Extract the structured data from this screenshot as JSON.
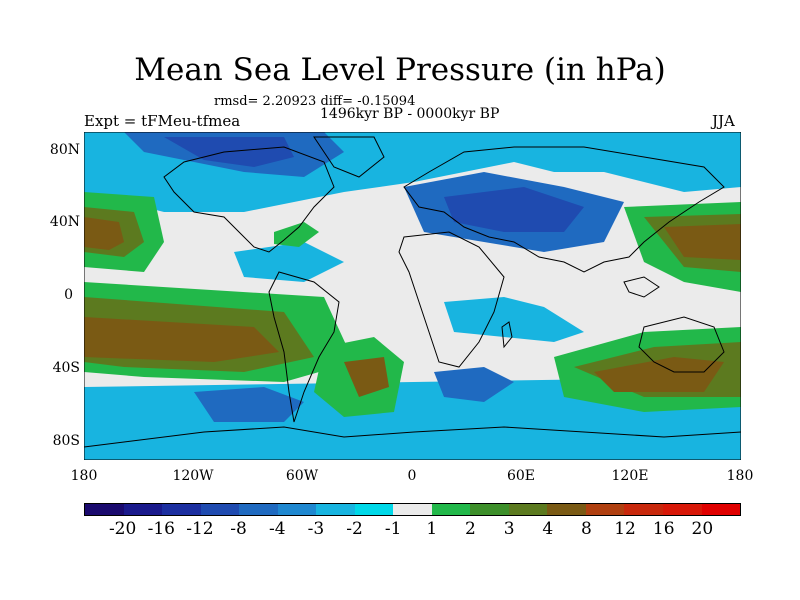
{
  "title": "Mean Sea Level Pressure (in hPa)",
  "stats_line": "rmsd= 2.20923 diff= -0.15094",
  "period": "1496kyr BP - 0000kyr BP",
  "experiment": "Expt = tFMeu-tfmea",
  "season": "JJA",
  "lat_ticks": [
    "80N",
    "40N",
    "0",
    "40S",
    "80S"
  ],
  "lon_ticks": [
    "180",
    "120W",
    "60W",
    "0",
    "60E",
    "120E",
    "180"
  ],
  "colorbar": {
    "labels": [
      "-20",
      "-16",
      "-12",
      "-8",
      "-4",
      "-3",
      "-2",
      "-1",
      "1",
      "2",
      "3",
      "4",
      "8",
      "12",
      "16",
      "20"
    ],
    "colors": [
      "#1a0a6e",
      "#1a1a8c",
      "#1c2fa0",
      "#1f4bb0",
      "#1f6ac0",
      "#1f88d0",
      "#18b4e0",
      "#00d8e8",
      "#ebebeb",
      "#22b84a",
      "#3d8f2a",
      "#5c7a1f",
      "#7a5a14",
      "#b04010",
      "#c8280c",
      "#d81808",
      "#e00000"
    ]
  },
  "palette": {
    "ocean_low": "#18b4e0",
    "land_neutral": "#ebebeb",
    "green": "#22b84a",
    "brown": "#7a5a14",
    "blue_deep": "#1f4bb0",
    "coast": "#000000"
  }
}
